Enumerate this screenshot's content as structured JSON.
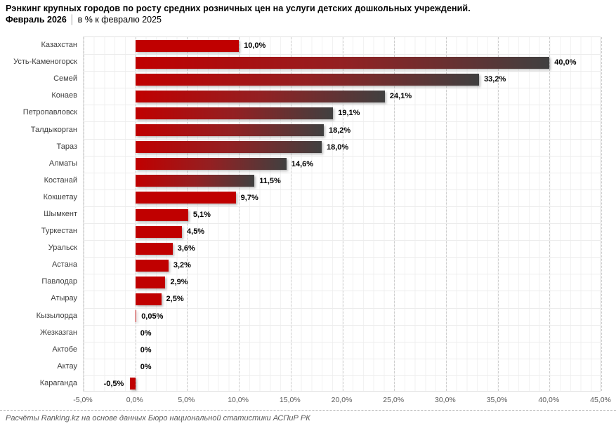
{
  "header": {
    "title": "Рэнкинг крупных городов по росту средних розничных цен на услуги детских дошкольных учреждений.",
    "period_bold": "Февраль 2026",
    "separator": "│",
    "period_rest": "в % к февралю 2025"
  },
  "chart_data": {
    "type": "bar",
    "orientation": "horizontal",
    "title": "Рэнкинг крупных городов по росту средних розничных цен на услуги детских дошкольных учреждений. Февраль 2026, в % к февралю 2025",
    "categories": [
      "Казахстан",
      "Усть-Каменогорск",
      "Семей",
      "Конаев",
      "Петропавловск",
      "Талдыкорган",
      "Тараз",
      "Алматы",
      "Костанай",
      "Кокшетау",
      "Шымкент",
      "Туркестан",
      "Уральск",
      "Астана",
      "Павлодар",
      "Атырау",
      "Кызылорда",
      "Жезказган",
      "Актобе",
      "Актау",
      "Караганда"
    ],
    "values": [
      10.0,
      40.0,
      33.2,
      24.1,
      19.1,
      18.2,
      18.0,
      14.6,
      11.5,
      9.7,
      5.1,
      4.5,
      3.6,
      3.2,
      2.9,
      2.5,
      0.05,
      0,
      0,
      0,
      -0.5
    ],
    "value_labels": [
      "10,0%",
      "40,0%",
      "33,2%",
      "24,1%",
      "19,1%",
      "18,2%",
      "18,0%",
      "14,6%",
      "11,5%",
      "9,7%",
      "5,1%",
      "4,5%",
      "3,6%",
      "3,2%",
      "2,9%",
      "2,5%",
      "0,05%",
      "0%",
      "0%",
      "0%",
      "-0,5%"
    ],
    "xlabel": "",
    "ylabel": "",
    "xlim": [
      -5,
      45
    ],
    "x_tick_values": [
      -5,
      0,
      5,
      10,
      15,
      20,
      25,
      30,
      35,
      40,
      45
    ],
    "x_tick_labels": [
      "-5,0%",
      "0,0%",
      "5,0%",
      "10,0%",
      "15,0%",
      "20,0%",
      "25,0%",
      "30,0%",
      "35,0%",
      "40,0%",
      "45,0%"
    ],
    "grid": "minor 1%, major dashed 5%",
    "legend": "none",
    "bar_color": "#C00000",
    "gradient_end_color": "#404040",
    "gradient_threshold": 10.0
  },
  "footer": {
    "source": "Расчёты Ranking.kz на основе данных Бюро национальной статистики АСПиР РК"
  }
}
